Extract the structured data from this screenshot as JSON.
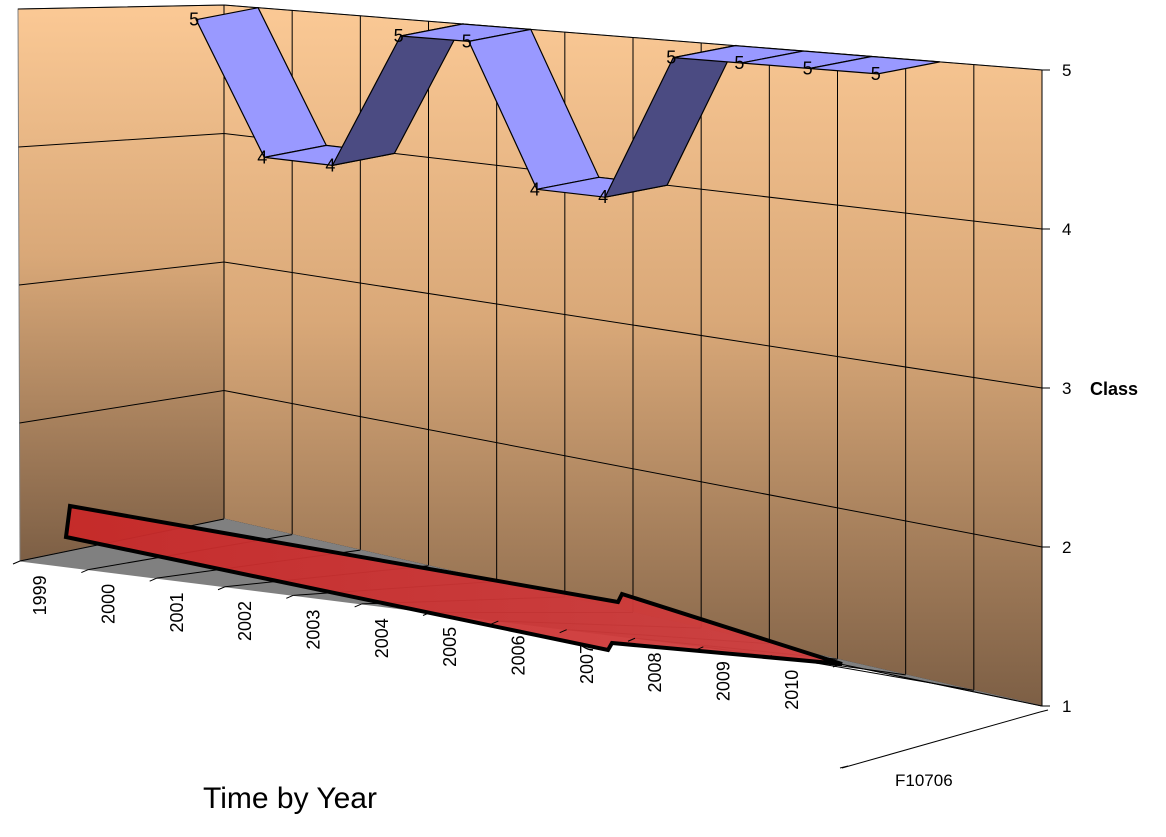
{
  "chart_data": {
    "type": "3d-line",
    "title": "",
    "xlabel": "Time by Year",
    "ylabel": "Class",
    "ylim": [
      1,
      5
    ],
    "yticks": [
      1,
      2,
      3,
      4,
      5
    ],
    "categories": [
      "1999",
      "2000",
      "2001",
      "2002",
      "2003",
      "2004",
      "2005",
      "2006",
      "2007",
      "2008",
      "2009",
      "2010"
    ],
    "depth_categories": [
      "F10706"
    ],
    "series": [
      {
        "name": "F10706",
        "values": [
          5,
          4,
          4,
          5,
          5,
          4,
          4,
          5,
          5,
          5,
          5,
          null
        ]
      }
    ],
    "data_labels": true,
    "grid": true,
    "annotation": "red-arrow-trend-down",
    "colors": {
      "ribbon_light": "#9999ff",
      "ribbon_dark": "#4b4b82",
      "wall_top": "#f9c795",
      "wall_bottom": "#7d5f45",
      "floor": "#808080",
      "arrow_fill": "#c83232"
    }
  }
}
